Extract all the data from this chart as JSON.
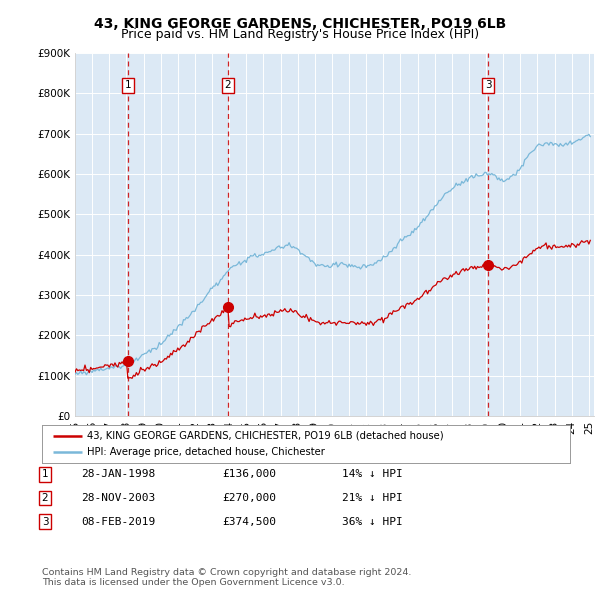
{
  "title": "43, KING GEORGE GARDENS, CHICHESTER, PO19 6LB",
  "subtitle": "Price paid vs. HM Land Registry's House Price Index (HPI)",
  "ylim": [
    0,
    900000
  ],
  "yticks": [
    0,
    100000,
    200000,
    300000,
    400000,
    500000,
    600000,
    700000,
    800000,
    900000
  ],
  "ytick_labels": [
    "£0",
    "£100K",
    "£200K",
    "£300K",
    "£400K",
    "£500K",
    "£600K",
    "£700K",
    "£800K",
    "£900K"
  ],
  "background_color": "#ffffff",
  "plot_bg_color": "#dce9f5",
  "grid_color": "#ffffff",
  "sale_color": "#cc0000",
  "hpi_color": "#7ab8d9",
  "dashed_vline_color": "#cc0000",
  "sale_times": [
    1998.08,
    2003.92,
    2019.12
  ],
  "sale_prices": [
    136000,
    270000,
    374500
  ],
  "sale_labels": [
    "1",
    "2",
    "3"
  ],
  "hpi_key_years": [
    1995.0,
    1995.5,
    1996.0,
    1996.5,
    1997.0,
    1997.5,
    1998.0,
    1998.5,
    1999.0,
    1999.5,
    2000.0,
    2000.5,
    2001.0,
    2001.5,
    2002.0,
    2002.5,
    2003.0,
    2003.5,
    2004.0,
    2004.5,
    2005.0,
    2005.5,
    2006.0,
    2006.5,
    2007.0,
    2007.5,
    2008.0,
    2008.5,
    2009.0,
    2009.5,
    2010.0,
    2010.5,
    2011.0,
    2011.5,
    2012.0,
    2012.5,
    2013.0,
    2013.5,
    2014.0,
    2014.5,
    2015.0,
    2015.5,
    2016.0,
    2016.5,
    2017.0,
    2017.5,
    2018.0,
    2018.5,
    2019.0,
    2019.5,
    2020.0,
    2020.5,
    2021.0,
    2021.5,
    2022.0,
    2022.5,
    2023.0,
    2023.5,
    2024.0,
    2024.5,
    2025.0
  ],
  "hpi_key_values": [
    105000,
    108000,
    112000,
    116000,
    118000,
    122000,
    128000,
    140000,
    152000,
    165000,
    178000,
    198000,
    218000,
    240000,
    262000,
    290000,
    315000,
    335000,
    360000,
    378000,
    388000,
    395000,
    402000,
    408000,
    418000,
    422000,
    412000,
    395000,
    375000,
    368000,
    372000,
    378000,
    372000,
    368000,
    370000,
    375000,
    390000,
    410000,
    432000,
    450000,
    468000,
    492000,
    520000,
    545000,
    565000,
    578000,
    590000,
    598000,
    604000,
    600000,
    585000,
    592000,
    615000,
    648000,
    672000,
    680000,
    675000,
    672000,
    680000,
    690000,
    700000
  ],
  "sale1_hpi_ratio": 0.86,
  "sale2_hpi_ratio": 0.79,
  "sale3_hpi_ratio": 0.64,
  "legend_sale_label": "43, KING GEORGE GARDENS, CHICHESTER, PO19 6LB (detached house)",
  "legend_hpi_label": "HPI: Average price, detached house, Chichester",
  "table_data": [
    [
      "1",
      "28-JAN-1998",
      "£136,000",
      "14% ↓ HPI"
    ],
    [
      "2",
      "28-NOV-2003",
      "£270,000",
      "21% ↓ HPI"
    ],
    [
      "3",
      "08-FEB-2019",
      "£374,500",
      "36% ↓ HPI"
    ]
  ],
  "footer": "Contains HM Land Registry data © Crown copyright and database right 2024.\nThis data is licensed under the Open Government Licence v3.0.",
  "title_fontsize": 10,
  "subtitle_fontsize": 9,
  "tick_fontsize": 7.5
}
